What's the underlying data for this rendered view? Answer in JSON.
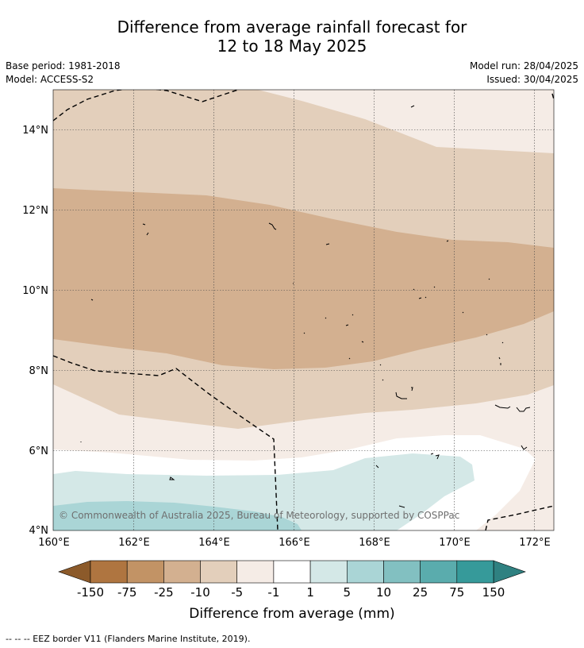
{
  "title": {
    "line1": "Difference from average rainfall forecast for",
    "line2": "12 to 18 May 2025"
  },
  "meta": {
    "base_period": "Base period: 1981-2018",
    "model": "Model: ACCESS-S2",
    "model_run": "Model run: 28/04/2025",
    "issued": "Issued: 30/04/2025"
  },
  "map": {
    "lat_labels": [
      "4°N",
      "6°N",
      "8°N",
      "10°N",
      "12°N",
      "14°N"
    ],
    "lon_labels": [
      "160°E",
      "162°E",
      "164°E",
      "166°E",
      "168°E",
      "170°E",
      "172°E"
    ],
    "copyright": "© Commonwealth of Australia 2025, Bureau of Meteorology, supported by COSPPac",
    "lat_range": [
      4,
      15
    ],
    "lon_range": [
      160,
      172.5
    ],
    "grid": true
  },
  "colorbar": {
    "title": "Difference from average (mm)",
    "tick_labels": [
      "-150",
      "-75",
      "-25",
      "-10",
      "-5",
      "-1",
      "1",
      "5",
      "10",
      "25",
      "75",
      "150"
    ],
    "colors": {
      "below_min": "#8c5a2a",
      "bins": [
        "#af7540",
        "#c29365",
        "#d3b090",
        "#e3cfbb",
        "#f5ece6",
        "#ffffff",
        "#d4e8e7",
        "#aad5d6",
        "#82c0c1",
        "#5aacad",
        "#369a9a"
      ],
      "above_max": "#2f8181"
    }
  },
  "footer": {
    "eez_note": "--  --  -- EEZ border V11 (Flanders Marine Institute, 2019)."
  }
}
